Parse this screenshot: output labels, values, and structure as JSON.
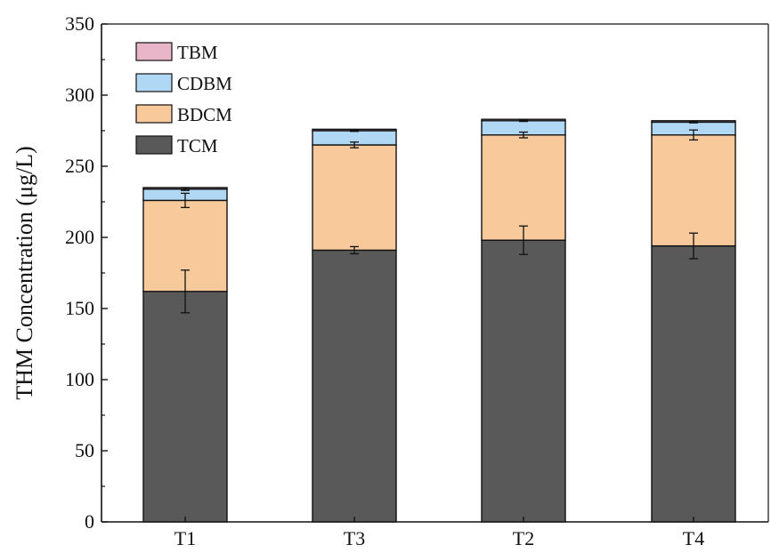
{
  "chart_data": {
    "type": "bar",
    "stacked": true,
    "categories": [
      "T1",
      "T3",
      "T2",
      "T4"
    ],
    "series": [
      {
        "name": "TCM",
        "values": [
          162,
          191,
          198,
          194
        ],
        "errors": [
          15,
          2.5,
          10,
          9
        ],
        "color": "#595959"
      },
      {
        "name": "BDCM",
        "values": [
          64,
          74,
          74,
          78
        ],
        "errors": [
          5,
          2,
          2,
          3.5
        ],
        "color": "#f7c99b"
      },
      {
        "name": "CDBM",
        "values": [
          8,
          10,
          10,
          9
        ],
        "errors": [
          1,
          0.5,
          0.5,
          0.5
        ],
        "color": "#b0d8f5"
      },
      {
        "name": "TBM",
        "values": [
          1,
          1,
          1,
          1
        ],
        "errors": [
          0,
          0,
          0,
          0
        ],
        "color": "#e8b5c9"
      }
    ],
    "title": "",
    "xlabel": "",
    "ylabel": "THM Concentration (μg/L)",
    "ylim": [
      0,
      350
    ],
    "yticks": [
      0,
      50,
      100,
      150,
      200,
      250,
      300,
      350
    ],
    "legend": {
      "placement": "top-left",
      "order": [
        "TBM",
        "CDBM",
        "BDCM",
        "TCM"
      ]
    },
    "grid": false
  }
}
